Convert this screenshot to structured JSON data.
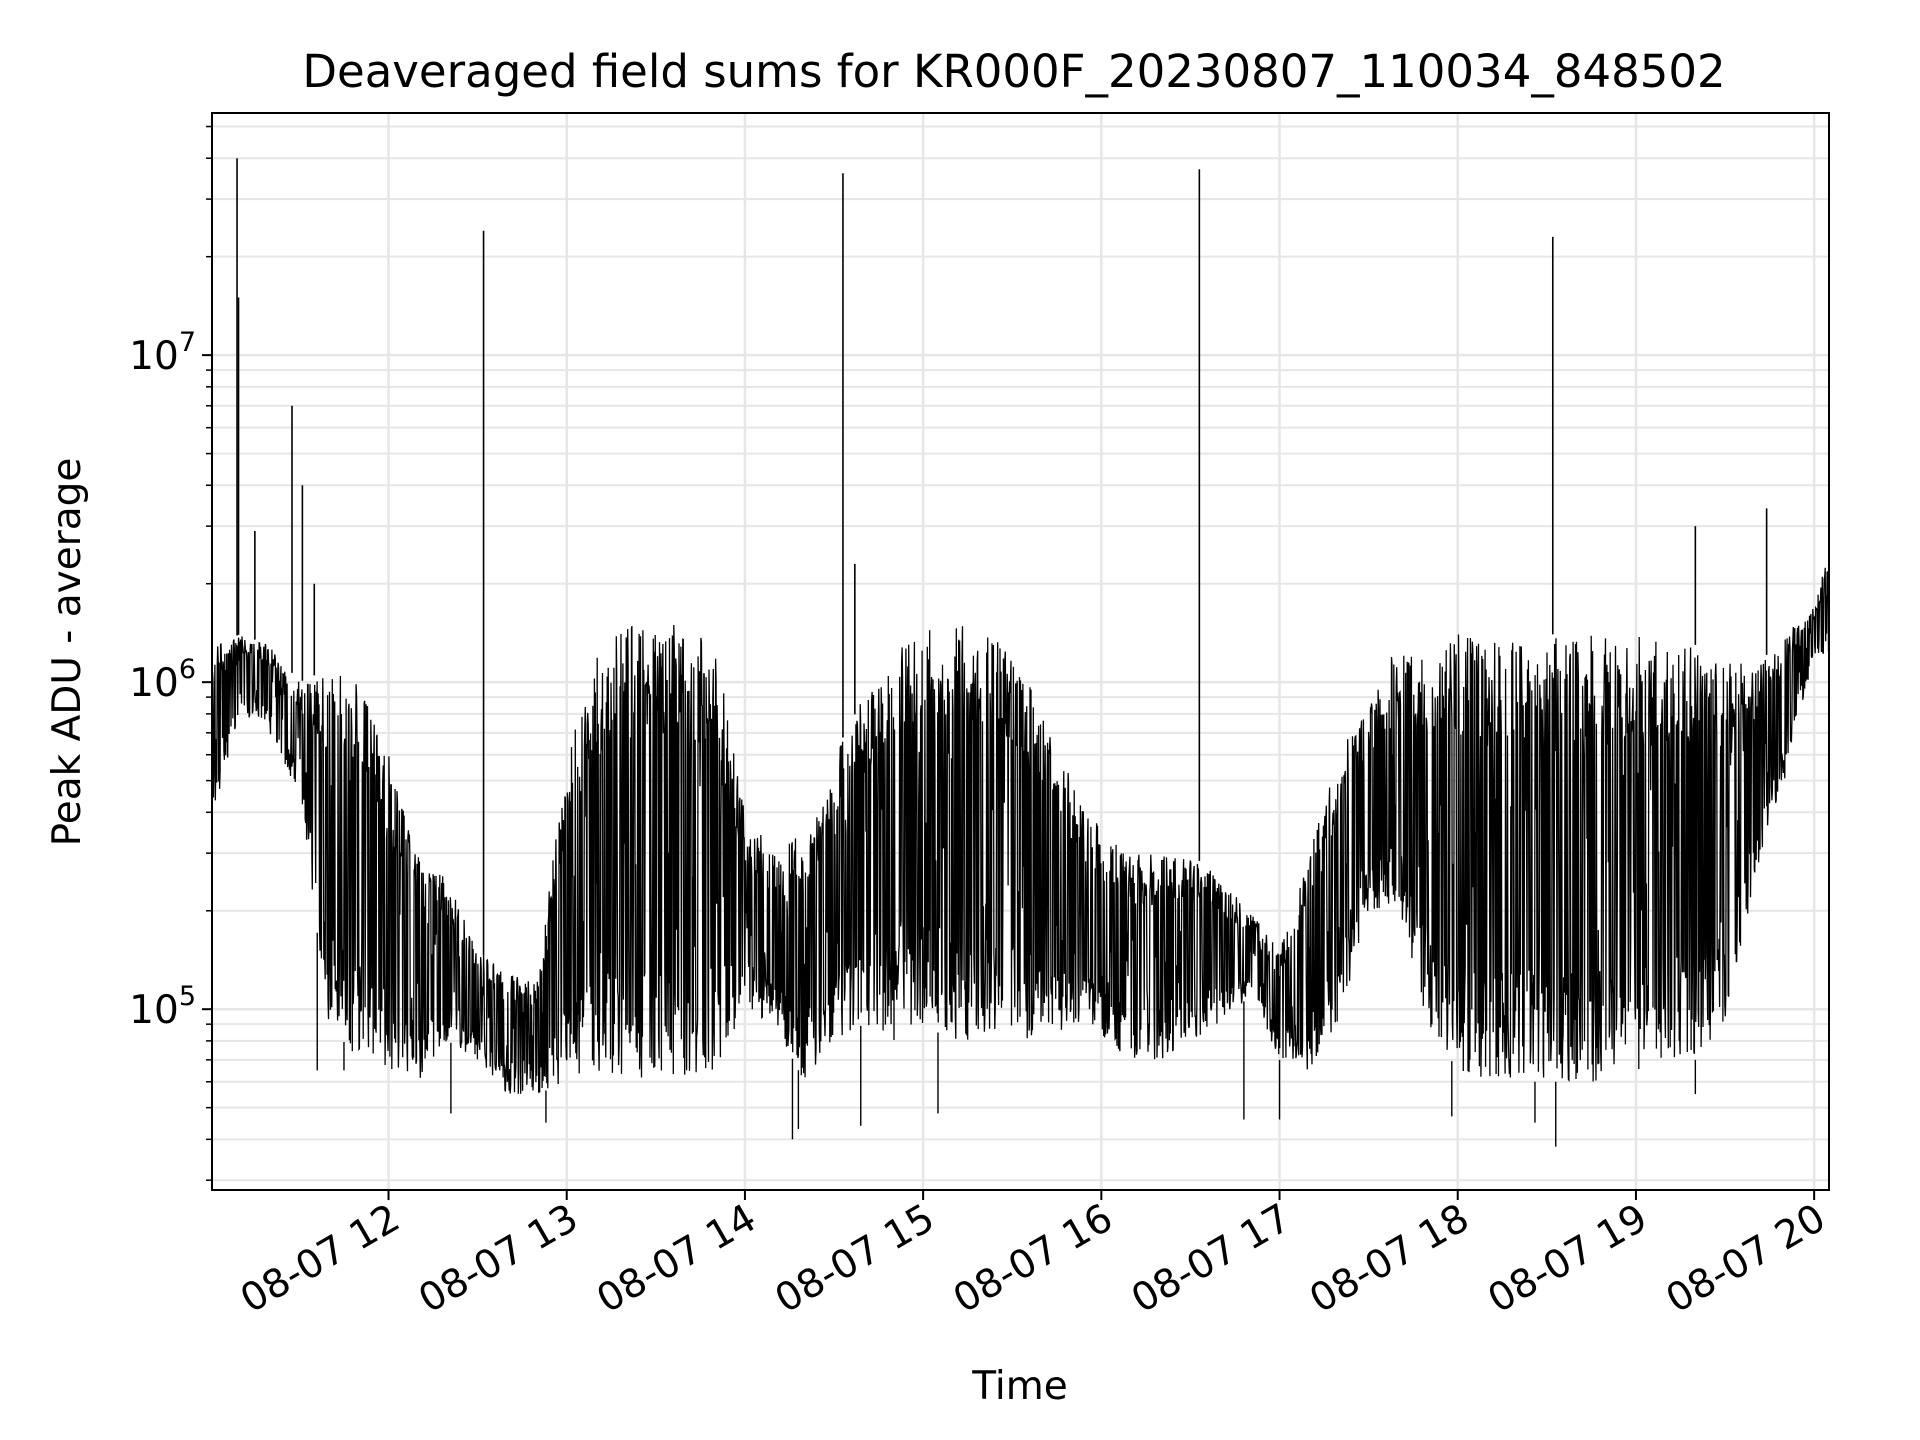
{
  "chart_data": {
    "type": "line",
    "title": "Deaveraged field sums for KR000F_20230807_110034_848502",
    "xlabel": "Time",
    "ylabel": "Peak ADU - average",
    "yscale": "log",
    "xlim": [
      "2023-08-07 11:00:34",
      "2023-08-07 20:05:00"
    ],
    "ylim": [
      28000,
      55000000
    ],
    "grid": true,
    "x_ticks": [
      "08-07 12",
      "08-07 13",
      "08-07 14",
      "08-07 15",
      "08-07 16",
      "08-07 17",
      "08-07 18",
      "08-07 19",
      "08-07 20"
    ],
    "y_ticks": [
      {
        "base": "10",
        "exp": "5",
        "value": 100000
      },
      {
        "base": "10",
        "exp": "6",
        "value": 1000000
      },
      {
        "base": "10",
        "exp": "7",
        "value": 10000000
      }
    ],
    "line_color": "#000000",
    "series": [
      {
        "x": [
          "2023-08-07 11:00:34",
          "2023-08-07 11:10:00",
          "2023-08-07 11:20:00",
          "2023-08-07 11:30:00",
          "2023-08-07 11:40:00",
          "2023-08-07 11:50:00",
          "2023-08-07 12:00:00",
          "2023-08-07 12:10:00",
          "2023-08-07 12:20:00",
          "2023-08-07 12:30:00",
          "2023-08-07 12:40:00",
          "2023-08-07 12:50:00",
          "2023-08-07 13:00:00",
          "2023-08-07 13:10:00",
          "2023-08-07 13:20:00",
          "2023-08-07 13:30:00",
          "2023-08-07 13:40:00",
          "2023-08-07 13:50:00",
          "2023-08-07 14:00:00",
          "2023-08-07 14:10:00",
          "2023-08-07 14:20:00",
          "2023-08-07 14:30:00",
          "2023-08-07 14:40:00",
          "2023-08-07 14:50:00",
          "2023-08-07 15:00:00",
          "2023-08-07 15:10:00",
          "2023-08-07 15:20:00",
          "2023-08-07 15:30:00",
          "2023-08-07 15:40:00",
          "2023-08-07 15:50:00",
          "2023-08-07 16:00:00",
          "2023-08-07 16:10:00",
          "2023-08-07 16:20:00",
          "2023-08-07 16:30:00",
          "2023-08-07 16:40:00",
          "2023-08-07 16:50:00",
          "2023-08-07 17:00:00",
          "2023-08-07 17:10:00",
          "2023-08-07 17:20:00",
          "2023-08-07 17:30:00",
          "2023-08-07 17:40:00",
          "2023-08-07 17:50:00",
          "2023-08-07 18:00:00",
          "2023-08-07 18:10:00",
          "2023-08-07 18:20:00",
          "2023-08-07 18:30:00",
          "2023-08-07 18:40:00",
          "2023-08-07 18:50:00",
          "2023-08-07 19:00:00",
          "2023-08-07 19:10:00",
          "2023-08-07 19:20:00",
          "2023-08-07 19:30:00",
          "2023-08-07 19:40:00",
          "2023-08-07 19:50:00",
          "2023-08-07 20:00:00",
          "2023-08-07 20:05:00"
        ],
        "lo": [
          380000,
          800000,
          700000,
          450000,
          90000,
          70000,
          65000,
          60000,
          80000,
          70000,
          55000,
          55000,
          60000,
          60000,
          60000,
          60000,
          60000,
          65000,
          100000,
          90000,
          60000,
          80000,
          90000,
          80000,
          90000,
          80000,
          80000,
          80000,
          80000,
          90000,
          80000,
          70000,
          70000,
          80000,
          90000,
          110000,
          70000,
          65000,
          90000,
          200000,
          200000,
          90000,
          65000,
          60000,
          60000,
          60000,
          60000,
          60000,
          60000,
          70000,
          70000,
          90000,
          250000,
          500000,
          1200000,
          1200000
        ],
        "hi": [
          1300000,
          1400000,
          1300000,
          1000000,
          1100000,
          1000000,
          600000,
          300000,
          250000,
          150000,
          130000,
          120000,
          600000,
          1200000,
          1500000,
          1500000,
          1500000,
          1300000,
          400000,
          300000,
          350000,
          600000,
          900000,
          1200000,
          1500000,
          1500000,
          1500000,
          1300000,
          800000,
          500000,
          350000,
          300000,
          300000,
          300000,
          250000,
          200000,
          150000,
          300000,
          600000,
          900000,
          1300000,
          1300000,
          1400000,
          1400000,
          1400000,
          1400000,
          1400000,
          1400000,
          1400000,
          1300000,
          1300000,
          1200000,
          1100000,
          1400000,
          1700000,
          2500000
        ]
      }
    ],
    "spikes": [
      {
        "t": "2023-08-07 11:09:00",
        "v": 40000000
      },
      {
        "t": "2023-08-07 11:09:30",
        "v": 15000000
      },
      {
        "t": "2023-08-07 11:27:30",
        "v": 7000000
      },
      {
        "t": "2023-08-07 11:15:00",
        "v": 2900000
      },
      {
        "t": "2023-08-07 11:31:00",
        "v": 4000000
      },
      {
        "t": "2023-08-07 11:35:00",
        "v": 2000000
      },
      {
        "t": "2023-08-07 12:32:00",
        "v": 24000000
      },
      {
        "t": "2023-08-07 14:33:00",
        "v": 36000000
      },
      {
        "t": "2023-08-07 14:37:00",
        "v": 2300000
      },
      {
        "t": "2023-08-07 16:33:00",
        "v": 37000000
      },
      {
        "t": "2023-08-07 18:32:00",
        "v": 23000000
      },
      {
        "t": "2023-08-07 19:20:00",
        "v": 3000000
      },
      {
        "t": "2023-08-07 19:44:00",
        "v": 3400000
      }
    ],
    "dips": [
      {
        "t": "2023-08-07 11:36:00",
        "v": 65000
      },
      {
        "t": "2023-08-07 11:45:00",
        "v": 65000
      },
      {
        "t": "2023-08-07 12:21:00",
        "v": 48000
      },
      {
        "t": "2023-08-07 12:53:00",
        "v": 45000
      },
      {
        "t": "2023-08-07 14:16:00",
        "v": 40000
      },
      {
        "t": "2023-08-07 14:18:00",
        "v": 43000
      },
      {
        "t": "2023-08-07 14:39:00",
        "v": 44000
      },
      {
        "t": "2023-08-07 15:05:00",
        "v": 48000
      },
      {
        "t": "2023-08-07 16:48:00",
        "v": 46000
      },
      {
        "t": "2023-08-07 17:00:00",
        "v": 46000
      },
      {
        "t": "2023-08-07 17:58:00",
        "v": 47000
      },
      {
        "t": "2023-08-07 18:26:00",
        "v": 45000
      },
      {
        "t": "2023-08-07 18:33:00",
        "v": 38000
      },
      {
        "t": "2023-08-07 19:20:00",
        "v": 55000
      }
    ]
  }
}
